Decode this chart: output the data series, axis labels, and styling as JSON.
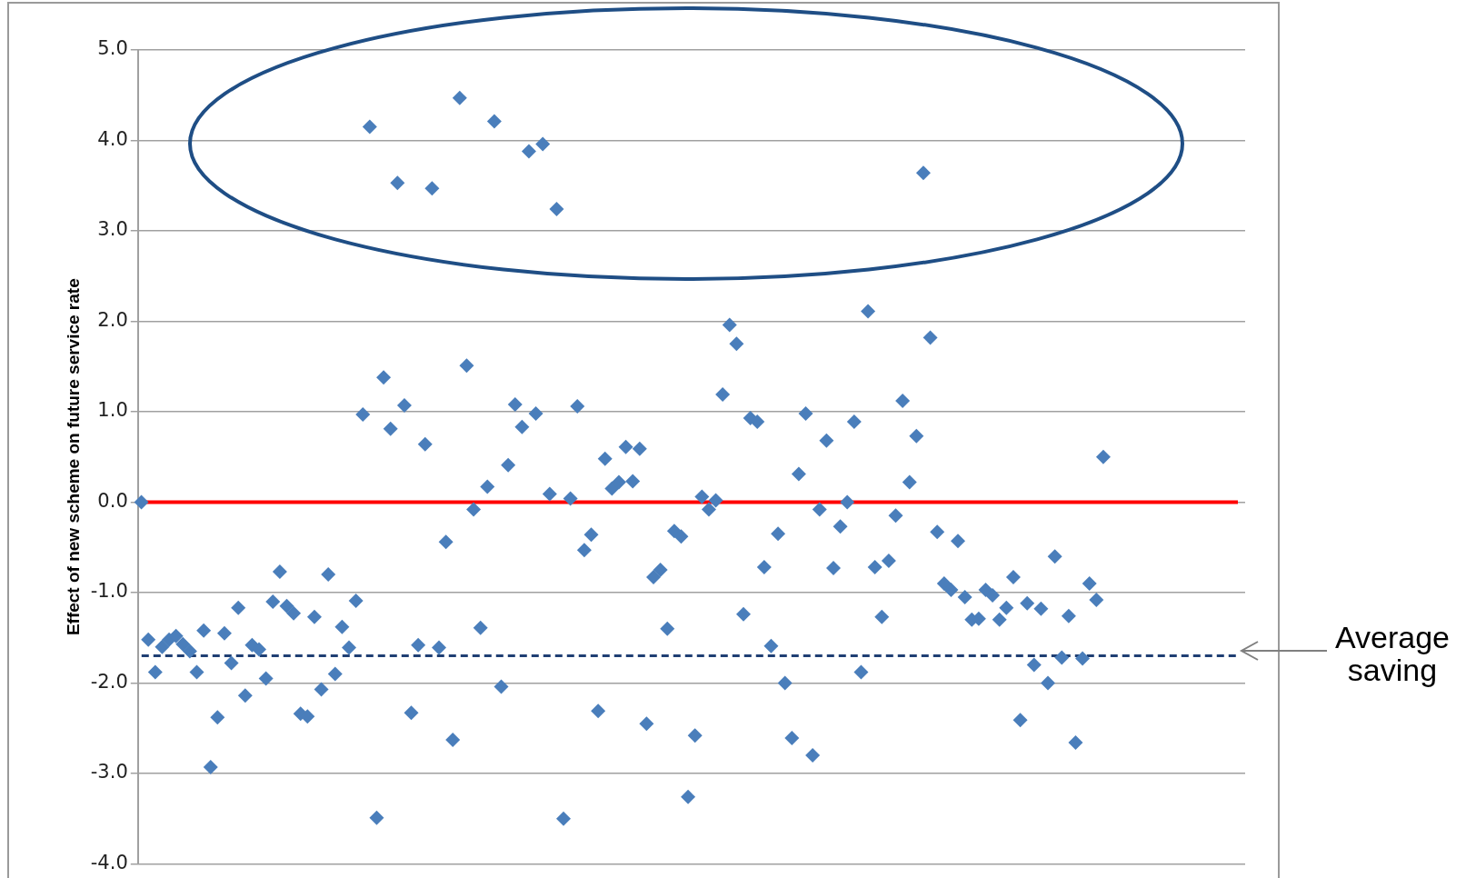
{
  "chart_data": {
    "type": "scatter",
    "ylabel": "Effect of new scheme on future service rate",
    "categories": [
      null,
      null,
      null,
      null,
      null,
      null,
      null,
      null,
      null,
      null,
      null,
      null,
      null,
      null,
      null,
      null,
      null,
      null,
      null,
      null,
      null,
      null,
      null,
      null,
      null,
      null,
      null,
      null,
      null,
      null,
      null,
      null,
      null,
      null,
      null,
      null,
      null,
      null,
      null,
      null,
      null,
      null,
      null,
      null,
      null,
      null,
      null,
      null,
      null,
      null,
      null,
      null,
      null,
      null,
      null,
      null,
      null,
      null,
      null,
      null,
      null,
      null,
      null,
      null,
      null,
      null,
      null,
      null,
      null,
      null,
      null,
      null,
      null,
      null,
      null,
      null,
      null,
      null,
      null,
      null,
      null,
      null,
      null,
      null,
      null,
      null,
      null,
      null,
      null,
      null,
      null,
      null,
      null,
      null,
      null,
      null,
      null,
      null,
      null,
      null,
      null,
      null,
      null,
      null,
      null,
      null,
      null,
      null,
      null,
      null,
      null,
      null,
      null,
      null,
      null,
      null,
      null,
      null,
      null,
      null,
      null,
      null,
      null,
      null,
      null,
      null,
      null,
      null,
      null,
      null,
      null,
      null,
      null,
      null,
      null,
      null,
      null,
      null,
      null,
      null,
      null,
      null,
      null,
      null,
      null,
      null,
      null,
      null,
      null,
      null,
      null,
      null,
      null,
      null,
      null,
      null,
      null,
      null,
      null,
      null
    ],
    "series": [
      {
        "color": "#4a7ebb",
        "values": [
          0.0,
          -1.52,
          -1.88,
          -1.6,
          -1.52,
          -1.48,
          -1.57,
          -1.65,
          -1.88,
          -1.42,
          -2.93,
          -2.38,
          -1.45,
          -1.78,
          -1.17,
          -2.14,
          -1.58,
          -1.63,
          -1.95,
          -1.1,
          -0.77,
          -1.15,
          -1.23,
          -2.34,
          -2.37,
          -1.27,
          -2.07,
          -0.8,
          -1.9,
          -1.38,
          -1.61,
          -1.09,
          0.97,
          4.15,
          -3.49,
          1.38,
          0.81,
          3.53,
          1.07,
          -2.33,
          -1.58,
          0.64,
          3.47,
          -1.61,
          -0.44,
          -2.63,
          4.47,
          1.51,
          -0.08,
          -1.39,
          0.17,
          4.21,
          -2.04,
          0.41,
          1.08,
          0.83,
          3.88,
          0.98,
          3.96,
          0.09,
          3.24,
          -3.5,
          0.04,
          1.06,
          -0.53,
          -0.36,
          -2.31,
          0.48,
          0.15,
          0.22,
          0.61,
          0.23,
          0.59,
          -2.45,
          -0.83,
          -0.75,
          -1.4,
          -0.32,
          -0.38,
          -3.26,
          -2.58,
          0.06,
          -0.08,
          0.02,
          1.19,
          1.96,
          1.75,
          -1.24,
          0.93,
          0.89,
          -0.72,
          -1.59,
          -0.35,
          -2.0,
          -2.61,
          0.31,
          0.98,
          -2.8,
          -0.08,
          0.68,
          -0.73,
          -0.27,
          0.0,
          0.89,
          -1.88,
          2.11,
          -0.72,
          -1.27,
          -0.65,
          -0.15,
          1.12,
          0.22,
          0.73,
          3.64,
          1.82,
          -0.33,
          -0.9,
          -0.97,
          -0.43,
          -1.05,
          -1.3,
          -1.29,
          -0.97,
          -1.03,
          -1.3,
          -1.17,
          -0.83,
          -2.41,
          -1.12,
          -1.8,
          -1.18,
          -2.0,
          -0.6,
          -1.72,
          -1.26,
          -2.66,
          -1.73,
          -0.9,
          -1.08,
          0.5,
          null,
          null,
          null,
          null,
          null,
          null,
          null,
          null,
          null,
          null,
          null,
          null,
          null,
          null,
          null,
          null,
          null,
          null,
          null,
          null
        ]
      }
    ],
    "ylim": [
      -4.0,
      5.0
    ],
    "yticks": [
      {
        "value": 5,
        "label": "5.0"
      },
      {
        "value": 4,
        "label": "4.0"
      },
      {
        "value": 3,
        "label": "3.0"
      },
      {
        "value": 2,
        "label": "2.0"
      },
      {
        "value": 1,
        "label": "1.0"
      },
      {
        "value": 0,
        "label": "0.0"
      },
      {
        "value": -1,
        "label": "-1.0"
      },
      {
        "value": -2,
        "label": "-2.0"
      },
      {
        "value": -3,
        "label": "-3.0"
      },
      {
        "value": -4,
        "label": "-4.0"
      }
    ],
    "grid": "y",
    "legend": false,
    "tick_labels": "y",
    "marker": "diamond",
    "ref_lines": [
      {
        "axis": "y",
        "value": 0,
        "label": null,
        "color": "#ff0000",
        "line_style": "solid"
      },
      {
        "axis": "y",
        "value": -1.7,
        "label": "Average saving",
        "color": "#1f3f73",
        "line_style": "dashed"
      }
    ]
  }
}
